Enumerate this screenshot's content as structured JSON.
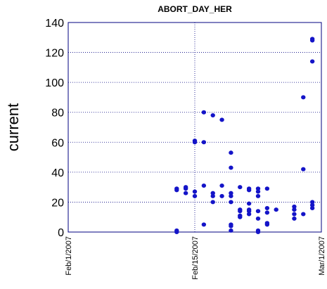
{
  "chart_data": {
    "type": "scatter",
    "title": "ABORT_DAY_HER",
    "y_label": "current",
    "x": [
      "2007-02-13",
      "2007-02-13",
      "2007-02-13",
      "2007-02-13",
      "2007-02-14",
      "2007-02-14",
      "2007-02-14",
      "2007-02-15",
      "2007-02-15",
      "2007-02-15",
      "2007-02-15",
      "2007-02-16",
      "2007-02-16",
      "2007-02-16",
      "2007-02-16",
      "2007-02-17",
      "2007-02-17",
      "2007-02-17",
      "2007-02-17",
      "2007-02-18",
      "2007-02-18",
      "2007-02-18",
      "2007-02-19",
      "2007-02-19",
      "2007-02-19",
      "2007-02-19",
      "2007-02-19",
      "2007-02-19",
      "2007-02-19",
      "2007-02-19",
      "2007-02-20",
      "2007-02-20",
      "2007-02-20",
      "2007-02-20",
      "2007-02-20",
      "2007-02-21",
      "2007-02-21",
      "2007-02-21",
      "2007-02-21",
      "2007-02-21",
      "2007-02-21",
      "2007-02-22",
      "2007-02-22",
      "2007-02-22",
      "2007-02-22",
      "2007-02-22",
      "2007-02-22",
      "2007-02-22",
      "2007-02-23",
      "2007-02-23",
      "2007-02-23",
      "2007-02-23",
      "2007-02-23",
      "2007-02-24",
      "2007-02-26",
      "2007-02-26",
      "2007-02-26",
      "2007-02-26",
      "2007-02-27",
      "2007-02-27",
      "2007-02-27",
      "2007-02-28",
      "2007-02-28",
      "2007-02-28",
      "2007-02-28",
      "2007-02-28",
      "2007-02-28"
    ],
    "values": [
      0,
      1,
      28,
      29,
      30,
      29,
      26,
      61,
      60,
      27,
      24,
      80,
      60,
      31,
      5,
      78,
      26,
      24,
      20,
      75,
      31,
      24,
      53,
      43,
      26,
      24,
      20,
      5,
      4,
      1,
      30,
      15,
      14,
      11,
      10,
      29,
      28,
      19,
      15,
      14,
      12,
      29,
      27,
      24,
      14,
      9,
      1,
      0,
      29,
      16,
      13,
      6,
      5,
      15,
      17,
      15,
      12,
      9,
      90,
      42,
      12,
      129,
      128,
      114,
      20,
      18,
      16
    ],
    "color": "#1414c8",
    "xlim": [
      "2007-02-01",
      "2007-03-01"
    ],
    "xticks": [
      {
        "value": "2007-02-01",
        "label": "Feb/1/2007"
      },
      {
        "value": "2007-02-15",
        "label": "Feb/15/2007"
      },
      {
        "value": "2007-03-01",
        "label": "Mar/1/2007"
      }
    ],
    "ylim": [
      0,
      140
    ],
    "yticks": [
      0,
      20,
      40,
      60,
      80,
      100,
      120,
      140
    ],
    "grid": true
  }
}
